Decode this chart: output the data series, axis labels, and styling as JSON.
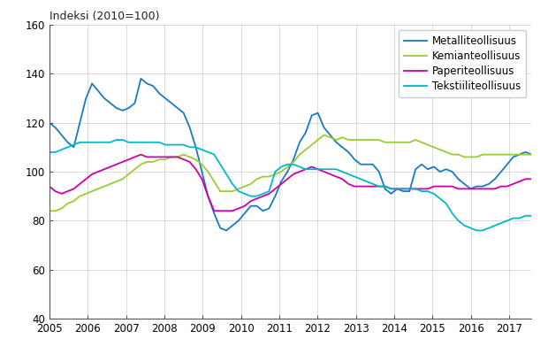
{
  "title": "Indeksi (2010=100)",
  "xlim": [
    2005.0,
    2017.583
  ],
  "ylim": [
    40,
    160
  ],
  "yticks": [
    40,
    60,
    80,
    100,
    120,
    140,
    160
  ],
  "xticks": [
    2005,
    2006,
    2007,
    2008,
    2009,
    2010,
    2011,
    2012,
    2013,
    2014,
    2015,
    2016,
    2017
  ],
  "colors": {
    "Metalliteollisuus": "#1a7abf",
    "Kemianteollisuus": "#9acd32",
    "Paperiteollisuus": "#cc00aa",
    "Tekstiiliteollisuus": "#00b8c8"
  },
  "Metalliteollisuus": [
    120,
    118,
    115,
    112,
    110,
    120,
    130,
    136,
    133,
    130,
    128,
    126,
    125,
    126,
    128,
    138,
    136,
    135,
    132,
    130,
    128,
    126,
    124,
    118,
    110,
    100,
    90,
    83,
    77,
    76,
    78,
    80,
    83,
    86,
    86,
    84,
    85,
    90,
    96,
    100,
    105,
    112,
    116,
    123,
    124,
    118,
    115,
    112,
    110,
    108,
    105,
    103,
    103,
    103,
    100,
    93,
    91,
    93,
    92,
    92,
    101,
    103,
    101,
    102,
    100,
    101,
    100,
    97,
    95,
    93,
    94,
    94,
    95,
    97,
    100,
    103,
    106,
    107,
    108,
    107
  ],
  "Kemianteollisuus": [
    84,
    84,
    85,
    87,
    88,
    90,
    91,
    92,
    93,
    94,
    95,
    96,
    97,
    99,
    101,
    103,
    104,
    104,
    105,
    105,
    106,
    106,
    107,
    106,
    105,
    103,
    100,
    96,
    92,
    92,
    92,
    93,
    94,
    95,
    97,
    98,
    98,
    99,
    100,
    102,
    104,
    107,
    109,
    111,
    113,
    115,
    114,
    113,
    114,
    113,
    113,
    113,
    113,
    113,
    113,
    112,
    112,
    112,
    112,
    112,
    113,
    112,
    111,
    110,
    109,
    108,
    107,
    107,
    106,
    106,
    106,
    107,
    107,
    107,
    107,
    107,
    107,
    107,
    107,
    107
  ],
  "Paperiteollisuus": [
    94,
    92,
    91,
    92,
    93,
    95,
    97,
    99,
    100,
    101,
    102,
    103,
    104,
    105,
    106,
    107,
    106,
    106,
    106,
    106,
    106,
    106,
    105,
    104,
    101,
    97,
    90,
    84,
    84,
    84,
    84,
    85,
    86,
    88,
    89,
    90,
    91,
    93,
    95,
    97,
    99,
    100,
    101,
    102,
    101,
    100,
    99,
    98,
    97,
    95,
    94,
    94,
    94,
    94,
    94,
    94,
    93,
    93,
    93,
    93,
    93,
    93,
    93,
    94,
    94,
    94,
    94,
    93,
    93,
    93,
    93,
    93,
    93,
    93,
    94,
    94,
    95,
    96,
    97,
    97
  ],
  "Tekstiiliteollisuus": [
    108,
    108,
    109,
    110,
    111,
    112,
    112,
    112,
    112,
    112,
    112,
    113,
    113,
    112,
    112,
    112,
    112,
    112,
    112,
    111,
    111,
    111,
    111,
    110,
    110,
    109,
    108,
    107,
    103,
    99,
    95,
    92,
    91,
    90,
    90,
    91,
    92,
    100,
    102,
    103,
    103,
    102,
    101,
    101,
    101,
    101,
    101,
    101,
    100,
    99,
    98,
    97,
    96,
    95,
    94,
    94,
    93,
    93,
    93,
    93,
    93,
    92,
    92,
    91,
    89,
    87,
    83,
    80,
    78,
    77,
    76,
    76,
    77,
    78,
    79,
    80,
    81,
    81,
    82,
    82
  ],
  "n_points": 80,
  "start_year": 2005.0,
  "end_year": 2017.583
}
